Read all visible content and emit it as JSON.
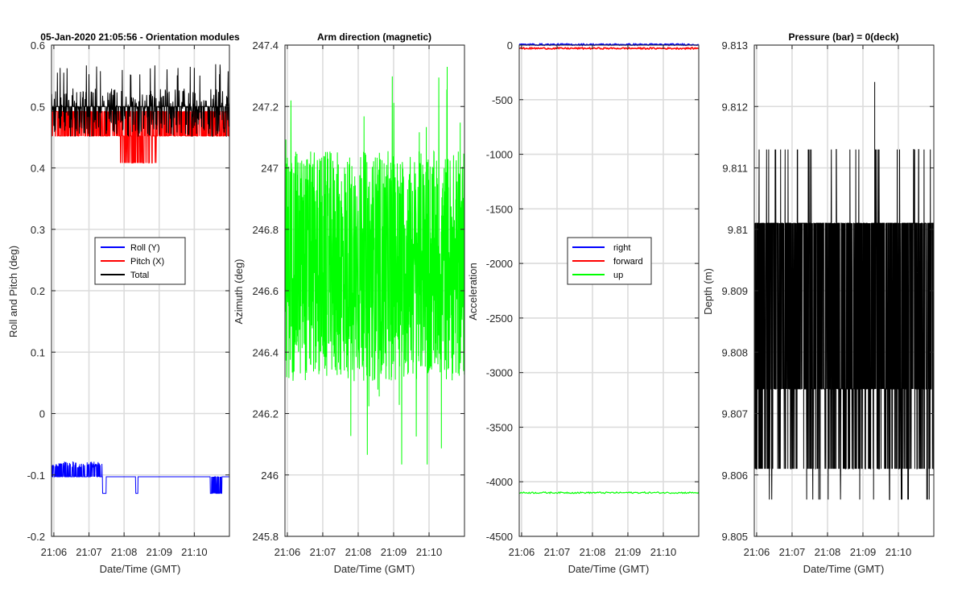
{
  "figure": {
    "colors": {
      "roll": "#0000ff",
      "pitch": "#ff0000",
      "total": "#000000",
      "up": "#00ff00",
      "axis": "#262626",
      "grid": "#d9d9d9"
    }
  },
  "chart_data": [
    {
      "type": "line",
      "title": "05-Jan-2020 21:05:56 - Orientation modules",
      "xlabel": "Date/Time (GMT)",
      "ylabel": "Roll and Pitch (deg)",
      "xticklabels": [
        "21:06",
        "21:07",
        "21:08",
        "21:09",
        "21:10"
      ],
      "xlim": [
        "21:05:56",
        "21:11:00"
      ],
      "ylim": [
        -0.2,
        0.6
      ],
      "yticks": [
        "-0.2",
        "-0.1",
        "0",
        "0.1",
        "0.2",
        "0.3",
        "0.4",
        "0.5",
        "0.6"
      ],
      "grid": true,
      "legend": {
        "location": "center",
        "entries": [
          "Roll (Y)",
          "Pitch (X)",
          "Total"
        ]
      },
      "series": [
        {
          "name": "Roll (Y)",
          "color": "#0000ff",
          "baseline": -0.103,
          "levels": [
            -0.103,
            -0.078,
            -0.13
          ],
          "description_values": {
            "typical": -0.103,
            "high_spikes": -0.078,
            "low_spikes": -0.13
          }
        },
        {
          "name": "Pitch (X)",
          "color": "#ff0000",
          "baseline": 0.492,
          "levels": [
            0.492,
            0.452,
            0.408
          ]
        },
        {
          "name": "Total",
          "color": "#000000",
          "baseline": 0.5,
          "levels": [
            0.5,
            0.52,
            0.45,
            0.57
          ]
        }
      ]
    },
    {
      "type": "line",
      "title": "Arm direction (magnetic)",
      "xlabel": "Date/Time (GMT)",
      "ylabel": "Azimuth (deg)",
      "xticklabels": [
        "21:06",
        "21:07",
        "21:08",
        "21:09",
        "21:10"
      ],
      "xlim": [
        "21:05:56",
        "21:11:00"
      ],
      "ylim": [
        245.8,
        247.4
      ],
      "yticks": [
        "245.8",
        "246",
        "246.2",
        "246.4",
        "246.6",
        "246.8",
        "247",
        "247.2",
        "247.4"
      ],
      "grid": true,
      "series": [
        {
          "name": "",
          "color": "#00ff00",
          "mean": 246.68,
          "typical_range": [
            246.25,
            247.15
          ],
          "extremes": [
            245.92,
            247.32
          ]
        }
      ]
    },
    {
      "type": "line",
      "title": "",
      "xlabel": "Date/Time (GMT)",
      "ylabel": "Acceleration",
      "xticklabels": [
        "21:06",
        "21:07",
        "21:08",
        "21:09",
        "21:10"
      ],
      "xlim": [
        "21:05:56",
        "21:11:00"
      ],
      "ylim": [
        -4500,
        0
      ],
      "yticks": [
        "-4500",
        "-4000",
        "-3500",
        "-3000",
        "-2500",
        "-2000",
        "-1500",
        "-1000",
        "-500",
        "0"
      ],
      "grid": true,
      "legend": {
        "location": "center",
        "entries": [
          "right",
          "forward",
          "up"
        ]
      },
      "series": [
        {
          "name": "right",
          "color": "#0000ff",
          "value": 5
        },
        {
          "name": "forward",
          "color": "#ff0000",
          "value": -30
        },
        {
          "name": "up",
          "color": "#00ff00",
          "value": -4100
        }
      ]
    },
    {
      "type": "line",
      "title": "Pressure (bar) = 0(deck)",
      "xlabel": "Date/Time (GMT)",
      "ylabel": "Depth (m)",
      "xticklabels": [
        "21:06",
        "21:07",
        "21:08",
        "21:09",
        "21:10"
      ],
      "xlim": [
        "21:05:56",
        "21:11:00"
      ],
      "ylim": [
        9.805,
        9.813
      ],
      "yticks": [
        "9.805",
        "9.806",
        "9.807",
        "9.808",
        "9.809",
        "9.81",
        "9.811",
        "9.812",
        "9.813"
      ],
      "grid": true,
      "series": [
        {
          "name": "",
          "color": "#000000",
          "typical_range": [
            9.8061,
            9.8101
          ],
          "extremes": [
            9.8053,
            9.8124
          ]
        }
      ]
    }
  ]
}
